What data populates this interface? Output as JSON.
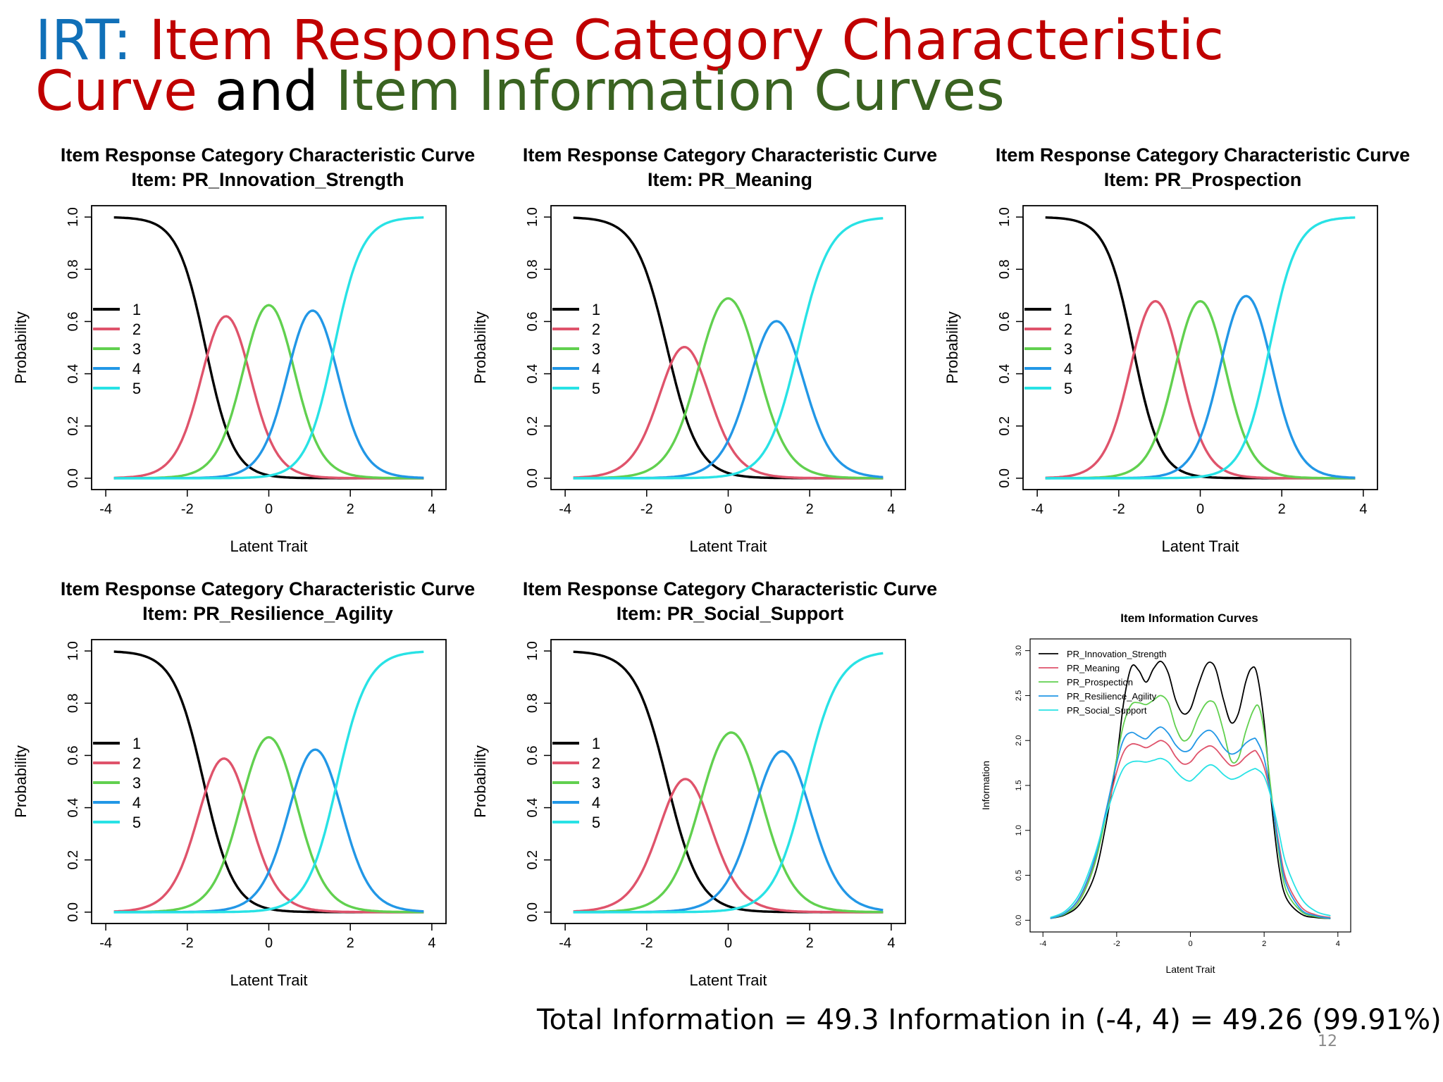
{
  "slide": {
    "title_parts": [
      "IRT:",
      " Item Response Category Characteristic",
      "Curve",
      " and ",
      "Item Information Curves"
    ],
    "footer": "Total Information = 49.3 Information in (-4, 4) = 49.26 (99.91%)",
    "page_number": "12",
    "colors": {
      "title_blue": "#1070b8",
      "title_red": "#c00000",
      "title_green": "#3a6321"
    }
  },
  "chart_data": [
    {
      "type": "line",
      "title": "Item Response Category Characteristic Curve",
      "subtitle": "Item: PR_Innovation_Strength",
      "xlabel": "Latent Trait",
      "ylabel": "Probability",
      "xlim": [
        -4,
        4
      ],
      "ylim": [
        0,
        1
      ],
      "xticks": [
        -4,
        -2,
        0,
        2,
        4
      ],
      "yticks": [
        0.0,
        0.2,
        0.4,
        0.6,
        0.8,
        1.0
      ],
      "tick_labels_x": [
        "-4",
        "-2",
        "0",
        "2",
        "4"
      ],
      "tick_labels_y": [
        "0.0",
        "0.2",
        "0.4",
        "0.6",
        "0.8",
        "1.0"
      ],
      "legend_position": "left-middle",
      "grid": false,
      "x_range_plotted": [
        -3.8,
        3.8
      ],
      "params": {
        "a": 2.9,
        "b": [
          -1.55,
          -0.55,
          0.55,
          1.6
        ]
      },
      "series": [
        {
          "name": "1",
          "color": "#000000",
          "peak_x": -3.8,
          "peak_y": 1.0
        },
        {
          "name": "2",
          "color": "#df536b",
          "peak_x": -1.05,
          "peak_y": 0.66
        },
        {
          "name": "3",
          "color": "#61d04f",
          "peak_x": 0.0,
          "peak_y": 0.72
        },
        {
          "name": "4",
          "color": "#2297e6",
          "peak_x": 1.08,
          "peak_y": 0.74
        },
        {
          "name": "5",
          "color": "#28e2e5",
          "peak_x": 3.8,
          "peak_y": 1.0
        }
      ]
    },
    {
      "type": "line",
      "title": "Item Response Category Characteristic Curve",
      "subtitle": "Item: PR_Meaning",
      "xlabel": "Latent Trait",
      "ylabel": "Probability",
      "xlim": [
        -4,
        4
      ],
      "ylim": [
        0,
        1
      ],
      "xticks": [
        -4,
        -2,
        0,
        2,
        4
      ],
      "yticks": [
        0.0,
        0.2,
        0.4,
        0.6,
        0.8,
        1.0
      ],
      "tick_labels_x": [
        "-4",
        "-2",
        "0",
        "2",
        "4"
      ],
      "tick_labels_y": [
        "0.0",
        "0.2",
        "0.4",
        "0.6",
        "0.8",
        "1.0"
      ],
      "legend_position": "left-middle",
      "grid": false,
      "x_range_plotted": [
        -3.8,
        3.8
      ],
      "params": {
        "a": 2.6,
        "b": [
          -1.5,
          -0.65,
          0.65,
          1.72
        ]
      },
      "series": [
        {
          "name": "1",
          "color": "#000000",
          "peak_x": -3.8,
          "peak_y": 1.0
        },
        {
          "name": "2",
          "color": "#df536b",
          "peak_x": -1.1,
          "peak_y": 0.57
        },
        {
          "name": "3",
          "color": "#61d04f",
          "peak_x": 0.0,
          "peak_y": 0.66
        },
        {
          "name": "4",
          "color": "#2297e6",
          "peak_x": 1.2,
          "peak_y": 0.69
        },
        {
          "name": "5",
          "color": "#28e2e5",
          "peak_x": 3.8,
          "peak_y": 1.0
        }
      ]
    },
    {
      "type": "line",
      "title": "Item Response Category Characteristic Curve",
      "subtitle": "Item: PR_Prospection",
      "xlabel": "Latent Trait",
      "ylabel": "Probability",
      "xlim": [
        -4,
        4
      ],
      "ylim": [
        0,
        1
      ],
      "xticks": [
        -4,
        -2,
        0,
        2,
        4
      ],
      "yticks": [
        0.0,
        0.2,
        0.4,
        0.6,
        0.8,
        1.0
      ],
      "tick_labels_x": [
        "-4",
        "-2",
        "0",
        "2",
        "4"
      ],
      "tick_labels_y": [
        "0.0",
        "0.2",
        "0.4",
        "0.6",
        "0.8",
        "1.0"
      ],
      "legend_position": "left-middle",
      "grid": false,
      "x_range_plotted": [
        -3.8,
        3.8
      ],
      "params": {
        "a": 3.0,
        "b": [
          -1.65,
          -0.55,
          0.55,
          1.7
        ]
      },
      "series": [
        {
          "name": "1",
          "color": "#000000",
          "peak_x": -3.8,
          "peak_y": 1.0
        },
        {
          "name": "2",
          "color": "#df536b",
          "peak_x": -1.15,
          "peak_y": 0.64
        },
        {
          "name": "3",
          "color": "#61d04f",
          "peak_x": -0.05,
          "peak_y": 0.73
        },
        {
          "name": "4",
          "color": "#2297e6",
          "peak_x": 1.2,
          "peak_y": 0.76
        },
        {
          "name": "5",
          "color": "#28e2e5",
          "peak_x": 3.8,
          "peak_y": 1.0
        }
      ]
    },
    {
      "type": "line",
      "title": "Item Response Category Characteristic Curve",
      "subtitle": "Item: PR_Resilience_Agility",
      "xlabel": "Latent Trait",
      "ylabel": "Probability",
      "xlim": [
        -4,
        4
      ],
      "ylim": [
        0,
        1
      ],
      "xticks": [
        -4,
        -2,
        0,
        2,
        4
      ],
      "yticks": [
        0.0,
        0.2,
        0.4,
        0.6,
        0.8,
        1.0
      ],
      "tick_labels_x": [
        "-4",
        "-2",
        "0",
        "2",
        "4"
      ],
      "tick_labels_y": [
        "0.0",
        "0.2",
        "0.4",
        "0.6",
        "0.8",
        "1.0"
      ],
      "legend_position": "left-middle",
      "grid": false,
      "x_range_plotted": [
        -3.8,
        3.8
      ],
      "params": {
        "a": 2.7,
        "b": [
          -1.6,
          -0.6,
          0.6,
          1.68
        ]
      },
      "series": [
        {
          "name": "1",
          "color": "#000000",
          "peak_x": -3.8,
          "peak_y": 1.0
        },
        {
          "name": "2",
          "color": "#df536b",
          "peak_x": -1.1,
          "peak_y": 0.61
        },
        {
          "name": "3",
          "color": "#61d04f",
          "peak_x": 0.0,
          "peak_y": 0.66
        },
        {
          "name": "4",
          "color": "#2297e6",
          "peak_x": 1.15,
          "peak_y": 0.73
        },
        {
          "name": "5",
          "color": "#28e2e5",
          "peak_x": 3.8,
          "peak_y": 1.0
        }
      ]
    },
    {
      "type": "line",
      "title": "Item Response Category Characteristic Curve",
      "subtitle": "Item: PR_Social_Support",
      "xlabel": "Latent Trait",
      "ylabel": "Probability",
      "xlim": [
        -4,
        4
      ],
      "ylim": [
        0,
        1
      ],
      "xticks": [
        -4,
        -2,
        0,
        2,
        4
      ],
      "yticks": [
        0.0,
        0.2,
        0.4,
        0.6,
        0.8,
        1.0
      ],
      "tick_labels_x": [
        "-4",
        "-2",
        "0",
        "2",
        "4"
      ],
      "tick_labels_y": [
        "0.0",
        "0.2",
        "0.4",
        "0.6",
        "0.8",
        "1.0"
      ],
      "legend_position": "left-middle",
      "grid": false,
      "x_range_plotted": [
        -3.8,
        3.8
      ],
      "params": {
        "a": 2.5,
        "b": [
          -1.5,
          -0.6,
          0.75,
          1.9
        ]
      },
      "series": [
        {
          "name": "1",
          "color": "#000000",
          "peak_x": -3.8,
          "peak_y": 1.0
        },
        {
          "name": "2",
          "color": "#df536b",
          "peak_x": -1.05,
          "peak_y": 0.55
        },
        {
          "name": "3",
          "color": "#61d04f",
          "peak_x": 0.1,
          "peak_y": 0.65
        },
        {
          "name": "4",
          "color": "#2297e6",
          "peak_x": 1.32,
          "peak_y": 0.65
        },
        {
          "name": "5",
          "color": "#28e2e5",
          "peak_x": 3.8,
          "peak_y": 0.99
        }
      ]
    },
    {
      "type": "line",
      "title": "Item Information Curves",
      "xlabel": "Latent Trait",
      "ylabel": "Information",
      "xlim": [
        -4,
        4
      ],
      "ylim": [
        0,
        3
      ],
      "xticks": [
        -4,
        -2,
        0,
        2,
        4
      ],
      "yticks": [
        0.0,
        0.5,
        1.0,
        1.5,
        2.0,
        2.5,
        3.0
      ],
      "tick_labels_x": [
        "-4",
        "-2",
        "0",
        "2",
        "4"
      ],
      "tick_labels_y": [
        "0.0",
        "0.5",
        "1.0",
        "1.5",
        "2.0",
        "2.5",
        "3.0"
      ],
      "legend_position": "top-left",
      "grid": false,
      "series": [
        {
          "name": "PR_Innovation_Strength",
          "color": "#000000",
          "x": [
            -3.8,
            -3.4,
            -3.0,
            -2.6,
            -2.3,
            -2.0,
            -1.8,
            -1.6,
            -1.4,
            -1.2,
            -1.0,
            -0.8,
            -0.6,
            -0.4,
            -0.2,
            0.0,
            0.2,
            0.4,
            0.55,
            0.7,
            0.9,
            1.1,
            1.3,
            1.5,
            1.65,
            1.8,
            2.0,
            2.2,
            2.4,
            2.6,
            3.0,
            3.4,
            3.8
          ],
          "y": [
            0.02,
            0.06,
            0.18,
            0.5,
            1.05,
            1.8,
            2.45,
            2.82,
            2.78,
            2.65,
            2.8,
            2.88,
            2.75,
            2.45,
            2.3,
            2.35,
            2.6,
            2.82,
            2.87,
            2.78,
            2.45,
            2.2,
            2.3,
            2.65,
            2.8,
            2.75,
            2.2,
            1.3,
            0.6,
            0.25,
            0.07,
            0.03,
            0.02
          ]
        },
        {
          "name": "PR_Meaning",
          "color": "#df536b",
          "x": [
            -3.8,
            -3.4,
            -3.0,
            -2.6,
            -2.3,
            -2.0,
            -1.8,
            -1.6,
            -1.4,
            -1.2,
            -1.0,
            -0.8,
            -0.6,
            -0.4,
            -0.2,
            0.0,
            0.2,
            0.4,
            0.55,
            0.7,
            0.9,
            1.1,
            1.3,
            1.5,
            1.7,
            1.8,
            2.0,
            2.2,
            2.4,
            2.6,
            3.0,
            3.4,
            3.8
          ],
          "y": [
            0.02,
            0.08,
            0.25,
            0.65,
            1.15,
            1.65,
            1.88,
            1.96,
            1.95,
            1.92,
            1.96,
            2.0,
            1.95,
            1.82,
            1.74,
            1.76,
            1.86,
            1.92,
            1.94,
            1.9,
            1.8,
            1.72,
            1.74,
            1.82,
            1.88,
            1.87,
            1.7,
            1.35,
            0.85,
            0.45,
            0.15,
            0.06,
            0.03
          ]
        },
        {
          "name": "PR_Prospection",
          "color": "#61d04f",
          "x": [
            -3.8,
            -3.4,
            -3.0,
            -2.6,
            -2.3,
            -2.0,
            -1.8,
            -1.6,
            -1.4,
            -1.2,
            -1.0,
            -0.8,
            -0.6,
            -0.4,
            -0.2,
            0.0,
            0.2,
            0.4,
            0.55,
            0.7,
            0.9,
            1.1,
            1.3,
            1.5,
            1.7,
            1.85,
            2.0,
            2.2,
            2.4,
            2.6,
            3.0,
            3.4,
            3.8
          ],
          "y": [
            0.02,
            0.07,
            0.22,
            0.62,
            1.15,
            1.8,
            2.2,
            2.4,
            2.42,
            2.4,
            2.45,
            2.5,
            2.42,
            2.15,
            2.0,
            2.05,
            2.25,
            2.4,
            2.44,
            2.38,
            2.1,
            1.78,
            1.8,
            2.1,
            2.33,
            2.38,
            2.1,
            1.4,
            0.75,
            0.33,
            0.1,
            0.04,
            0.02
          ]
        },
        {
          "name": "PR_Resilience_Agility",
          "color": "#2297e6",
          "x": [
            -3.8,
            -3.4,
            -3.0,
            -2.6,
            -2.3,
            -2.0,
            -1.8,
            -1.6,
            -1.4,
            -1.2,
            -1.0,
            -0.8,
            -0.6,
            -0.4,
            -0.2,
            0.0,
            0.2,
            0.4,
            0.55,
            0.7,
            0.9,
            1.1,
            1.3,
            1.5,
            1.7,
            1.8,
            2.0,
            2.2,
            2.4,
            2.6,
            3.0,
            3.4,
            3.8
          ],
          "y": [
            0.02,
            0.08,
            0.26,
            0.68,
            1.2,
            1.75,
            2.02,
            2.09,
            2.05,
            2.02,
            2.1,
            2.15,
            2.08,
            1.95,
            1.88,
            1.9,
            2.02,
            2.1,
            2.11,
            2.05,
            1.92,
            1.85,
            1.88,
            1.97,
            2.02,
            2.0,
            1.8,
            1.35,
            0.8,
            0.4,
            0.12,
            0.05,
            0.02
          ]
        },
        {
          "name": "PR_Social_Support",
          "color": "#28e2e5",
          "x": [
            -3.8,
            -3.4,
            -3.0,
            -2.6,
            -2.3,
            -2.0,
            -1.8,
            -1.6,
            -1.4,
            -1.2,
            -1.0,
            -0.8,
            -0.6,
            -0.4,
            -0.2,
            0.0,
            0.2,
            0.4,
            0.55,
            0.7,
            0.9,
            1.1,
            1.3,
            1.5,
            1.7,
            1.8,
            2.0,
            2.2,
            2.4,
            2.6,
            3.0,
            3.4,
            3.8
          ],
          "y": [
            0.03,
            0.1,
            0.3,
            0.72,
            1.15,
            1.52,
            1.7,
            1.76,
            1.77,
            1.76,
            1.78,
            1.8,
            1.76,
            1.66,
            1.58,
            1.55,
            1.62,
            1.7,
            1.73,
            1.7,
            1.62,
            1.57,
            1.59,
            1.64,
            1.68,
            1.68,
            1.6,
            1.35,
            0.98,
            0.62,
            0.25,
            0.1,
            0.05
          ]
        }
      ]
    }
  ]
}
